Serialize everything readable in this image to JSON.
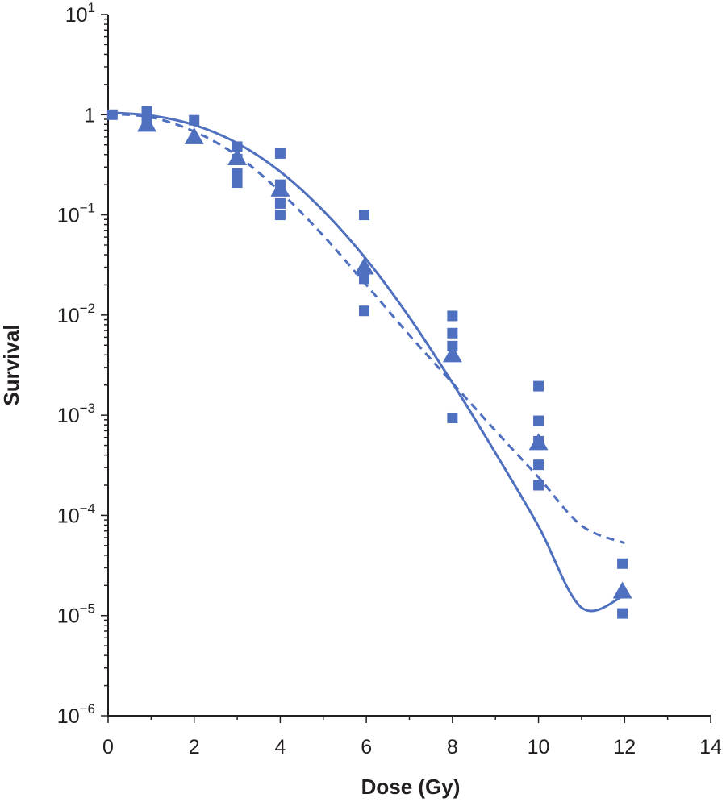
{
  "chart_data": {
    "type": "scatter",
    "title": "",
    "xlabel": "Dose (Gy)",
    "ylabel": "Survival",
    "x_range": [
      0,
      14
    ],
    "x_ticks": [
      0,
      2,
      4,
      6,
      8,
      10,
      12,
      14
    ],
    "x_tick_labels": [
      "0",
      "2",
      "4",
      "6",
      "8",
      "10",
      "12",
      "14"
    ],
    "y_scale": "log",
    "y_range": [
      1e-06,
      10
    ],
    "y_ticks": [
      {
        "value": 10,
        "base": "10",
        "exp": "1"
      },
      {
        "value": 1,
        "base": "1",
        "exp": ""
      },
      {
        "value": 0.1,
        "base": "10",
        "exp": "−1"
      },
      {
        "value": 0.01,
        "base": "10",
        "exp": "−2"
      },
      {
        "value": 0.001,
        "base": "10",
        "exp": "−3"
      },
      {
        "value": 0.0001,
        "base": "10",
        "exp": "−4"
      },
      {
        "value": 1e-05,
        "base": "10",
        "exp": "−5"
      },
      {
        "value": 1e-06,
        "base": "10",
        "exp": "−6"
      }
    ],
    "grid": false,
    "color": "#4f6fbf",
    "series": [
      {
        "marker": "square",
        "points": [
          [
            0.1,
            1.0
          ],
          [
            0.9,
            1.08
          ],
          [
            0.9,
            0.9
          ],
          [
            2.0,
            0.88
          ],
          [
            3.0,
            0.48
          ],
          [
            3.0,
            0.36
          ],
          [
            3.0,
            0.26
          ],
          [
            3.0,
            0.21
          ],
          [
            4.0,
            0.41
          ],
          [
            4.0,
            0.2
          ],
          [
            4.0,
            0.13
          ],
          [
            4.0,
            0.1
          ],
          [
            5.95,
            0.1
          ],
          [
            5.95,
            0.023
          ],
          [
            5.95,
            0.011
          ],
          [
            8.0,
            0.0098
          ],
          [
            8.0,
            0.0066
          ],
          [
            8.0,
            0.0049
          ],
          [
            8.0,
            0.00094
          ],
          [
            10.0,
            0.00195
          ],
          [
            10.0,
            0.00088
          ],
          [
            10.0,
            0.00055
          ],
          [
            10.0,
            0.00032
          ],
          [
            10.0,
            0.0002
          ],
          [
            11.95,
            3.3e-05
          ],
          [
            11.95,
            1.05e-05
          ]
        ]
      },
      {
        "marker": "triangle",
        "points": [
          [
            0.9,
            0.8
          ],
          [
            2.0,
            0.6
          ],
          [
            3.0,
            0.37
          ],
          [
            4.0,
            0.18
          ],
          [
            5.95,
            0.03
          ],
          [
            8.0,
            0.004
          ],
          [
            10.0,
            0.00053
          ],
          [
            11.95,
            1.75e-05
          ]
        ]
      },
      {
        "line": "solid",
        "points": [
          [
            0,
            1.05
          ],
          [
            1,
            0.98
          ],
          [
            2,
            0.79
          ],
          [
            3,
            0.52
          ],
          [
            4,
            0.27
          ],
          [
            5,
            0.11
          ],
          [
            6,
            0.036
          ],
          [
            7,
            0.0095
          ],
          [
            8,
            0.0021
          ],
          [
            9,
            0.00042
          ],
          [
            10,
            7.8e-05
          ],
          [
            11,
            1.2e-05
          ],
          [
            12,
            1.6e-05
          ]
        ]
      },
      {
        "line": "dashed",
        "points": [
          [
            0,
            1.02
          ],
          [
            1,
            0.94
          ],
          [
            2,
            0.68
          ],
          [
            3,
            0.39
          ],
          [
            4,
            0.17
          ],
          [
            5,
            0.062
          ],
          [
            6,
            0.02
          ],
          [
            7,
            0.0063
          ],
          [
            8,
            0.0021
          ],
          [
            9,
            0.0007
          ],
          [
            10,
            0.00024
          ],
          [
            11,
            7.9e-05
          ],
          [
            12,
            5.3e-05
          ]
        ]
      }
    ]
  }
}
